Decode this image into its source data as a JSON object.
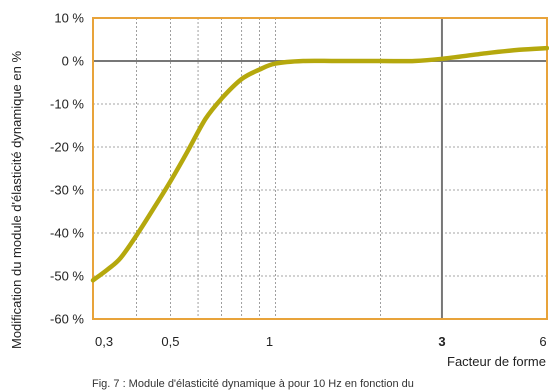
{
  "chart_data": {
    "type": "line",
    "title": "",
    "xlabel": "Facteur de forme",
    "ylabel": "Modification du module d'élasticité dynamique en %",
    "x_scale": "log",
    "xlim": [
      0.3,
      6
    ],
    "ylim": [
      -60,
      10
    ],
    "x_ticks": [
      0.3,
      0.5,
      1,
      3,
      6
    ],
    "x_tick_labels": [
      "0,3",
      "0,5",
      "1",
      "3",
      "6"
    ],
    "x_highlight_tick": 3,
    "y_ticks": [
      10,
      0,
      -10,
      -20,
      -30,
      -40,
      -50,
      -60
    ],
    "y_tick_labels": [
      "10 %",
      "0 %",
      "-10 %",
      "-20 %",
      "-30 %",
      "-40 %",
      "-50 %",
      "-60 %"
    ],
    "grid": true,
    "reference_lines": {
      "x": 3,
      "y": 0
    },
    "series": [
      {
        "x": [
          0.3,
          0.33,
          0.36,
          0.4,
          0.45,
          0.5,
          0.56,
          0.63,
          0.7,
          0.8,
          0.9,
          1.0,
          1.2,
          1.5,
          2.0,
          2.5,
          3.0,
          4.0,
          5.0,
          6.0
        ],
        "y": [
          -51,
          -48.5,
          -45.8,
          -40.5,
          -34,
          -28,
          -21,
          -13.5,
          -8.8,
          -4.2,
          -2.0,
          -0.6,
          0.0,
          0.0,
          0.0,
          0.0,
          0.5,
          1.8,
          2.6,
          3.0
        ],
        "color": "#b5a80d"
      }
    ],
    "caption": "Fig. 7 : Module d'élasticité dynamique à pour 10 Hz en fonction du"
  },
  "colors": {
    "frame": "#e8a33a",
    "grid": "#888888",
    "reference": "#777777",
    "curve": "#b5a80d"
  }
}
